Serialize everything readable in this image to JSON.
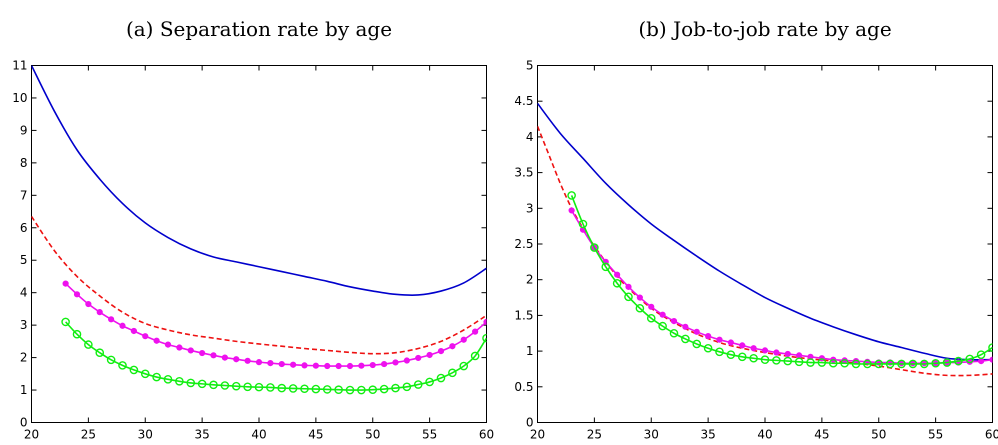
{
  "chart_data": [
    {
      "type": "line",
      "title": "(a) Separation rate by age",
      "xlabel": "",
      "ylabel": "",
      "xlim": [
        20,
        60
      ],
      "ylim": [
        0,
        11
      ],
      "xticks": [
        "20",
        "25",
        "30",
        "35",
        "40",
        "45",
        "50",
        "55",
        "60"
      ],
      "yticks": [
        "0",
        "1",
        "2",
        "3",
        "4",
        "5",
        "6",
        "7",
        "8",
        "9",
        "10",
        "11"
      ],
      "grid": false,
      "series": [
        {
          "color": "#0000cc",
          "style": "solid",
          "marker": "none",
          "x": [
            20,
            22,
            24,
            26,
            28,
            30,
            32,
            34,
            36,
            38,
            40,
            42,
            44,
            46,
            48,
            50,
            52,
            54,
            56,
            58,
            60
          ],
          "y": [
            11.0,
            9.6,
            8.4,
            7.5,
            6.75,
            6.15,
            5.7,
            5.35,
            5.1,
            4.95,
            4.8,
            4.65,
            4.5,
            4.35,
            4.18,
            4.05,
            3.95,
            3.93,
            4.05,
            4.3,
            4.75
          ]
        },
        {
          "color": "#ee1111",
          "style": "dashed",
          "marker": "none",
          "x": [
            20,
            22,
            24,
            26,
            28,
            30,
            32,
            34,
            36,
            38,
            40,
            42,
            44,
            46,
            48,
            50,
            52,
            54,
            56,
            58,
            60
          ],
          "y": [
            6.35,
            5.3,
            4.5,
            3.9,
            3.4,
            3.05,
            2.85,
            2.7,
            2.6,
            2.5,
            2.42,
            2.35,
            2.28,
            2.22,
            2.16,
            2.12,
            2.15,
            2.28,
            2.5,
            2.85,
            3.3
          ]
        },
        {
          "color": "#ee11ee",
          "style": "solid",
          "marker": "dot",
          "x": [
            23,
            24,
            25,
            26,
            27,
            28,
            29,
            30,
            31,
            32,
            33,
            34,
            35,
            36,
            37,
            38,
            39,
            40,
            41,
            42,
            43,
            44,
            45,
            46,
            47,
            48,
            49,
            50,
            51,
            52,
            53,
            54,
            55,
            56,
            57,
            58,
            59,
            60
          ],
          "y": [
            4.28,
            3.95,
            3.65,
            3.4,
            3.18,
            2.98,
            2.82,
            2.66,
            2.52,
            2.4,
            2.31,
            2.22,
            2.14,
            2.07,
            2.0,
            1.95,
            1.9,
            1.86,
            1.83,
            1.8,
            1.78,
            1.76,
            1.75,
            1.74,
            1.74,
            1.74,
            1.75,
            1.77,
            1.8,
            1.85,
            1.91,
            1.99,
            2.08,
            2.2,
            2.35,
            2.55,
            2.8,
            3.1
          ]
        },
        {
          "color": "#11ee11",
          "style": "solid",
          "marker": "circle",
          "x": [
            23,
            24,
            25,
            26,
            27,
            28,
            29,
            30,
            31,
            32,
            33,
            34,
            35,
            36,
            37,
            38,
            39,
            40,
            41,
            42,
            43,
            44,
            45,
            46,
            47,
            48,
            49,
            50,
            51,
            52,
            53,
            54,
            55,
            56,
            57,
            58,
            59,
            60
          ],
          "y": [
            3.1,
            2.72,
            2.4,
            2.15,
            1.93,
            1.76,
            1.62,
            1.5,
            1.4,
            1.33,
            1.27,
            1.22,
            1.19,
            1.16,
            1.14,
            1.12,
            1.1,
            1.09,
            1.08,
            1.06,
            1.05,
            1.04,
            1.03,
            1.02,
            1.01,
            1.0,
            1.0,
            1.01,
            1.03,
            1.06,
            1.1,
            1.17,
            1.25,
            1.37,
            1.53,
            1.74,
            2.05,
            2.6
          ]
        }
      ]
    },
    {
      "type": "line",
      "title": "(b) Job-to-job rate by age",
      "xlabel": "",
      "ylabel": "",
      "xlim": [
        20,
        60
      ],
      "ylim": [
        0,
        5
      ],
      "xticks": [
        "20",
        "25",
        "30",
        "35",
        "40",
        "45",
        "50",
        "55",
        "60"
      ],
      "yticks": [
        "0",
        "0.5",
        "1",
        "1.5",
        "2",
        "2.5",
        "3",
        "3.5",
        "4",
        "4.5",
        "5"
      ],
      "grid": false,
      "series": [
        {
          "color": "#0000cc",
          "style": "solid",
          "marker": "none",
          "x": [
            20,
            22,
            24,
            26,
            28,
            30,
            32,
            34,
            36,
            38,
            40,
            42,
            44,
            46,
            48,
            50,
            52,
            54,
            56,
            58,
            60
          ],
          "y": [
            4.47,
            4.05,
            3.7,
            3.35,
            3.05,
            2.78,
            2.55,
            2.33,
            2.12,
            1.93,
            1.75,
            1.6,
            1.46,
            1.34,
            1.23,
            1.13,
            1.05,
            0.97,
            0.9,
            0.88,
            0.88
          ]
        },
        {
          "color": "#ee1111",
          "style": "dashed",
          "marker": "none",
          "x": [
            20,
            21,
            22,
            23,
            24,
            25,
            26,
            27,
            28,
            30,
            32,
            34,
            36,
            38,
            40,
            42,
            44,
            46,
            48,
            50,
            52,
            54,
            56,
            58,
            60
          ],
          "y": [
            4.15,
            3.75,
            3.35,
            3.0,
            2.72,
            2.47,
            2.25,
            2.05,
            1.88,
            1.6,
            1.4,
            1.24,
            1.12,
            1.04,
            0.98,
            0.93,
            0.89,
            0.86,
            0.83,
            0.79,
            0.74,
            0.69,
            0.66,
            0.66,
            0.68
          ]
        },
        {
          "color": "#ee11ee",
          "style": "solid",
          "marker": "dot",
          "x": [
            23,
            24,
            25,
            26,
            27,
            28,
            29,
            30,
            31,
            32,
            33,
            34,
            35,
            36,
            37,
            38,
            39,
            40,
            41,
            42,
            43,
            44,
            45,
            46,
            47,
            48,
            49,
            50,
            51,
            52,
            53,
            54,
            55,
            56,
            57,
            58,
            59,
            60
          ],
          "y": [
            2.97,
            2.7,
            2.45,
            2.25,
            2.07,
            1.9,
            1.75,
            1.62,
            1.51,
            1.42,
            1.34,
            1.27,
            1.21,
            1.16,
            1.12,
            1.08,
            1.04,
            1.01,
            0.98,
            0.96,
            0.94,
            0.92,
            0.9,
            0.88,
            0.87,
            0.86,
            0.85,
            0.84,
            0.84,
            0.83,
            0.83,
            0.83,
            0.83,
            0.84,
            0.84,
            0.85,
            0.86,
            0.88
          ]
        },
        {
          "color": "#11ee11",
          "style": "solid",
          "marker": "circle",
          "x": [
            23,
            24,
            25,
            26,
            27,
            28,
            29,
            30,
            31,
            32,
            33,
            34,
            35,
            36,
            37,
            38,
            39,
            40,
            41,
            42,
            43,
            44,
            45,
            46,
            47,
            48,
            49,
            50,
            51,
            52,
            53,
            54,
            55,
            56,
            57,
            58,
            59,
            60
          ],
          "y": [
            3.18,
            2.78,
            2.45,
            2.18,
            1.95,
            1.76,
            1.6,
            1.46,
            1.35,
            1.25,
            1.17,
            1.1,
            1.04,
            0.99,
            0.95,
            0.92,
            0.9,
            0.88,
            0.87,
            0.86,
            0.85,
            0.84,
            0.84,
            0.83,
            0.83,
            0.82,
            0.82,
            0.82,
            0.82,
            0.82,
            0.82,
            0.82,
            0.83,
            0.84,
            0.86,
            0.89,
            0.95,
            1.05
          ]
        }
      ]
    }
  ]
}
